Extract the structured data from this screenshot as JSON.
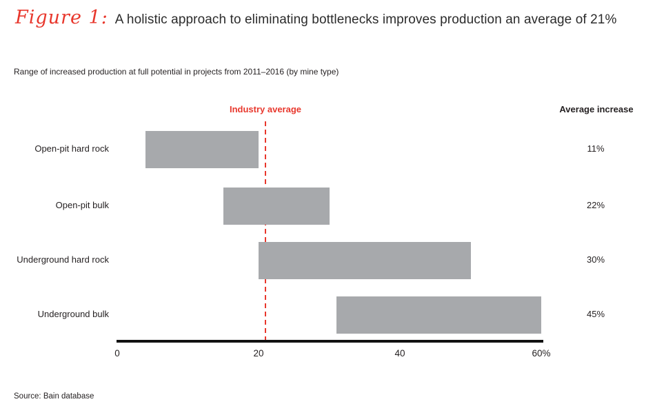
{
  "header": {
    "figure_label": "Figure 1:",
    "title": "A holistic approach to eliminating bottlenecks improves production an average of 21%"
  },
  "subtitle": "Range of increased production at full potential in projects from 2011–2016 (by mine type)",
  "annotations": {
    "industry_average_label": "Industry average",
    "average_increase_header": "Average increase"
  },
  "chart_data": {
    "type": "bar",
    "subtype": "horizontal-range-bars",
    "title": "Range of increased production at full potential in projects from 2011–2016 (by mine type)",
    "categories": [
      "Open-pit hard rock",
      "Open-pit bulk",
      "Underground hard rock",
      "Underground bulk"
    ],
    "ranges": [
      [
        4,
        20
      ],
      [
        15,
        30
      ],
      [
        20,
        50
      ],
      [
        31,
        60
      ]
    ],
    "average_increase": [
      "11%",
      "22%",
      "30%",
      "45%"
    ],
    "industry_average_value": 21,
    "xlim": [
      0,
      60
    ],
    "x_ticks": [
      0,
      20,
      40,
      60
    ],
    "x_tick_labels": [
      "0",
      "20",
      "40",
      "60%"
    ],
    "grid": false,
    "legend": "none",
    "bar_color": "#a7a9ac",
    "accent_red": "#e8372c",
    "axis_color": "#111111"
  },
  "source": "Source: Bain database"
}
